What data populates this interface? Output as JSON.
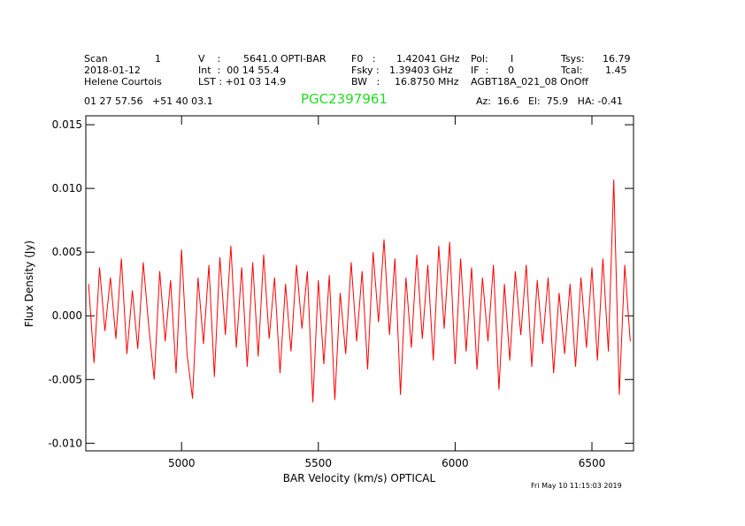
{
  "header": {
    "rows": [
      [
        "Scan",
        "1",
        "V    :",
        "5641.0 OPTI-BAR",
        "F0   :",
        "1.42041 GHz",
        "Pol:",
        "I",
        "Tsys:",
        "16.79"
      ],
      [
        "2018-01-12",
        "Int  :  00 14 55.4",
        "Fsky :",
        "1.39403 GHz",
        "IF  :",
        "0",
        "Tcal:",
        "1.45"
      ],
      [
        "Helene Courtois",
        "LST : +01 03 14.9",
        "BW   :",
        "16.8750 MHz",
        "AGBT18A_021_08 OnOff"
      ],
      [
        "01 27 57.56   +51 40 03.1",
        "Az:  16.6   El:  75.9   HA: -0.41"
      ]
    ],
    "timestamp": "Fri May 10 11:15:03 2019"
  },
  "chart_data": {
    "type": "line",
    "title": "PGC2397961",
    "title_color": "#22dd22",
    "x_label": "BAR Velocity (km/s) OPTICAL",
    "y_label": "Flux Density (Jy)",
    "xlim": [
      4650,
      6652
    ],
    "ylim": [
      -0.0106,
      0.0157
    ],
    "xticks": [
      5000,
      5500,
      6000,
      6500
    ],
    "yticks": [
      0.015,
      {
        "value": 0.01,
        "label": "0.010"
      },
      0.005,
      {
        "value": 0,
        "label": "0.000"
      },
      -0.005,
      {
        "value": -0.01,
        "label": "-0.010"
      }
    ],
    "series": [
      {
        "color": "#ff0000",
        "x": [
          4660,
          4680,
          4700,
          4720,
          4740,
          4760,
          4780,
          4800,
          4820,
          4840,
          4860,
          4880,
          4900,
          4920,
          4940,
          4960,
          4980,
          5000,
          5020,
          5040,
          5060,
          5080,
          5100,
          5120,
          5140,
          5160,
          5180,
          5200,
          5220,
          5240,
          5260,
          5280,
          5300,
          5320,
          5340,
          5360,
          5380,
          5400,
          5420,
          5440,
          5460,
          5480,
          5500,
          5520,
          5540,
          5560,
          5580,
          5600,
          5620,
          5640,
          5660,
          5680,
          5700,
          5720,
          5740,
          5760,
          5780,
          5800,
          5820,
          5840,
          5860,
          5880,
          5900,
          5920,
          5940,
          5960,
          5980,
          6000,
          6020,
          6040,
          6060,
          6080,
          6100,
          6120,
          6140,
          6160,
          6180,
          6200,
          6220,
          6240,
          6260,
          6280,
          6300,
          6320,
          6340,
          6360,
          6380,
          6400,
          6420,
          6440,
          6460,
          6480,
          6500,
          6520,
          6540,
          6560,
          6580,
          6600,
          6620,
          6640
        ],
        "values": [
          0.0025,
          -0.0037,
          0.0038,
          -0.0012,
          0.003,
          -0.0018,
          0.0045,
          -0.003,
          0.002,
          -0.0026,
          0.0042,
          -0.0008,
          -0.005,
          0.0035,
          -0.002,
          0.0028,
          -0.0045,
          0.0052,
          -0.003,
          -0.0065,
          0.003,
          -0.0022,
          0.004,
          -0.0048,
          0.0046,
          -0.0015,
          0.0055,
          -0.0025,
          0.0038,
          -0.004,
          0.0042,
          -0.0032,
          0.0048,
          -0.0018,
          0.003,
          -0.0045,
          0.0025,
          -0.0028,
          0.004,
          -0.001,
          0.0035,
          -0.0068,
          0.0028,
          -0.0038,
          0.0032,
          -0.0066,
          0.0018,
          -0.003,
          0.0042,
          -0.002,
          0.0035,
          -0.0042,
          0.005,
          -0.0005,
          0.006,
          -0.0015,
          0.0045,
          -0.0062,
          0.003,
          -0.0025,
          0.0048,
          -0.0018,
          0.004,
          -0.0035,
          0.0055,
          -0.001,
          0.0058,
          -0.0038,
          0.0045,
          -0.0028,
          0.0038,
          -0.0042,
          0.003,
          -0.002,
          0.004,
          -0.0058,
          0.0025,
          -0.0035,
          0.0035,
          -0.0015,
          0.004,
          -0.004,
          0.0028,
          -0.0022,
          0.003,
          -0.0045,
          0.0018,
          -0.003,
          0.0025,
          -0.004,
          0.003,
          -0.0025,
          0.0038,
          -0.0035,
          0.0045,
          -0.0028,
          0.0107,
          -0.0062,
          0.004,
          -0.002
        ]
      }
    ]
  }
}
